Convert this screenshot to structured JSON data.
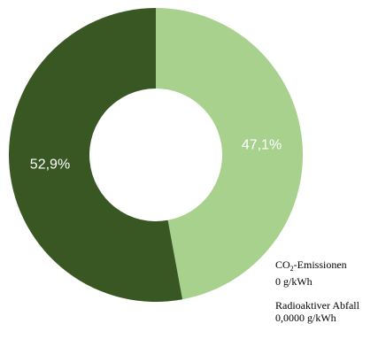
{
  "chart_data": {
    "type": "pie",
    "variant": "donut",
    "slices": [
      {
        "label": "47,1%",
        "value": 47.1,
        "color": "#a9d18e"
      },
      {
        "label": "52,9%",
        "value": 52.9,
        "color": "#385723"
      }
    ],
    "start_angle_deg": 0,
    "direction": "clockwise",
    "legend": "none"
  },
  "annotations": {
    "co2_label_prefix": "CO",
    "co2_label_subscript": "2",
    "co2_label_suffix": "-Emissionen",
    "co2_value": "0 g/kWh",
    "waste_label": "Radioaktiver Abfall",
    "waste_value": "0,0000 g/kWh"
  }
}
